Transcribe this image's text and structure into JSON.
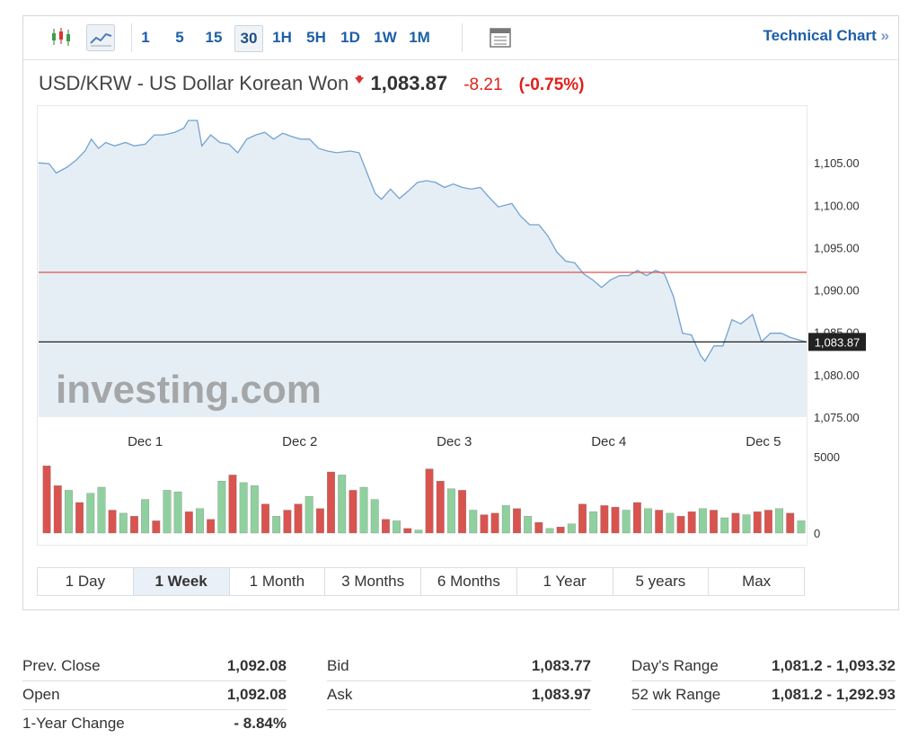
{
  "toolbar": {
    "intervals": [
      "1",
      "5",
      "15",
      "30",
      "1H",
      "5H",
      "1D",
      "1W",
      "1M"
    ],
    "selected": "30",
    "link": "Technical Chart",
    "link_arrow": "»"
  },
  "header": {
    "name": "USD/KRW - US Dollar Korean Won",
    "price": "1,083.87",
    "change": "-8.21",
    "change_pct": "(-0.75%)"
  },
  "watermark": "investing.com",
  "chart_data": [
    {
      "type": "line",
      "color": "#72a3d2",
      "fill": "#e6eef5",
      "x": [
        0.308,
        0.378,
        0.424,
        0.494,
        0.552,
        0.61,
        0.651,
        0.698,
        0.744,
        0.802,
        0.872,
        0.93,
        1.0,
        1.058,
        1.116,
        1.192,
        1.25,
        1.279,
        1.337,
        1.366,
        1.424,
        1.483,
        1.541,
        1.599,
        1.657,
        1.715,
        1.773,
        1.831,
        1.89,
        1.948,
        2.006,
        2.064,
        2.122,
        2.18,
        2.238,
        2.326,
        2.384,
        2.442,
        2.488,
        2.529,
        2.587,
        2.645,
        2.703,
        2.762,
        2.82,
        2.878,
        2.936,
        2.994,
        3.052,
        3.11,
        3.169,
        3.227,
        3.285,
        3.372,
        3.43,
        3.488,
        3.547,
        3.605,
        3.663,
        3.721,
        3.779,
        3.837,
        3.895,
        3.953,
        4.012,
        4.07,
        4.128,
        4.186,
        4.244,
        4.302,
        4.36,
        4.419,
        4.477,
        4.535,
        4.593,
        4.622,
        4.68,
        4.738,
        4.797,
        4.855,
        4.93,
        4.988,
        5.047,
        5.116,
        5.174,
        5.233,
        5.279
      ],
      "values": [
        1105.0,
        1104.9,
        1103.8,
        1104.5,
        1105.3,
        1106.4,
        1107.8,
        1106.7,
        1107.4,
        1107.0,
        1107.4,
        1107.0,
        1107.2,
        1108.3,
        1108.3,
        1108.6,
        1109.1,
        1110.0,
        1110.0,
        1107.0,
        1108.3,
        1107.4,
        1107.2,
        1106.2,
        1107.8,
        1108.3,
        1108.6,
        1107.8,
        1108.5,
        1108.1,
        1107.8,
        1107.8,
        1106.7,
        1106.4,
        1106.2,
        1106.4,
        1106.2,
        1103.5,
        1101.4,
        1100.7,
        1101.9,
        1100.8,
        1101.7,
        1102.7,
        1102.9,
        1102.7,
        1102.1,
        1102.5,
        1102.1,
        1101.9,
        1102.1,
        1100.9,
        1099.8,
        1100.2,
        1098.7,
        1097.7,
        1097.7,
        1096.4,
        1094.5,
        1093.4,
        1093.2,
        1091.9,
        1091.2,
        1090.3,
        1091.2,
        1091.7,
        1091.7,
        1092.3,
        1091.7,
        1092.3,
        1091.9,
        1089.2,
        1084.9,
        1084.7,
        1082.3,
        1081.6,
        1083.4,
        1083.4,
        1086.5,
        1086.0,
        1087.1,
        1083.9,
        1084.9,
        1084.9,
        1084.4,
        1084.1,
        1083.87
      ],
      "xlim": [
        0.31,
        5.28
      ],
      "xticks": [
        {
          "value": 1,
          "label": "Dec 1"
        },
        {
          "value": 2,
          "label": "Dec 2"
        },
        {
          "value": 3,
          "label": "Dec 3"
        },
        {
          "value": 4,
          "label": "Dec 4"
        },
        {
          "value": 5,
          "label": "Dec 5"
        }
      ],
      "ylim": [
        1075,
        1111.7
      ],
      "yticks": [
        {
          "value": 1075,
          "label": "1,075.00"
        },
        {
          "value": 1080,
          "label": "1,080.00"
        },
        {
          "value": 1085,
          "label": "1,085.00"
        },
        {
          "value": 1090,
          "label": "1,090.00"
        },
        {
          "value": 1095,
          "label": "1,095.00"
        },
        {
          "value": 1100,
          "label": "1,100.00"
        },
        {
          "value": 1105,
          "label": "1,105.00"
        }
      ],
      "grid": false,
      "reference_lines": [
        {
          "value": 1092.08,
          "color": "#d9534f"
        },
        {
          "value": 1083.87,
          "label": "1,083.87",
          "color": "#222222"
        }
      ]
    },
    {
      "type": "bar",
      "values": [
        4400,
        3100,
        2800,
        2000,
        2600,
        3000,
        1500,
        1300,
        1100,
        2200,
        800,
        2800,
        2700,
        1400,
        1600,
        900,
        3400,
        3800,
        3300,
        3100,
        1900,
        1100,
        1500,
        1900,
        2400,
        1600,
        4000,
        3800,
        2800,
        3000,
        2200,
        900,
        800,
        300,
        200,
        4200,
        3400,
        2900,
        2800,
        1500,
        1200,
        1300,
        1800,
        1600,
        1100,
        700,
        300,
        400,
        600,
        1900,
        1400,
        1800,
        1700,
        1500,
        2000,
        1600,
        1500,
        1300,
        1100,
        1400,
        1600,
        1500,
        1000,
        1300,
        1200,
        1400,
        1500,
        1600,
        1300,
        800
      ],
      "colors": [
        "#d9534f",
        "#d9534f",
        "#8fd19e",
        "#d9534f",
        "#8fd19e",
        "#8fd19e",
        "#d9534f",
        "#8fd19e",
        "#d9534f",
        "#8fd19e",
        "#d9534f",
        "#8fd19e",
        "#8fd19e",
        "#d9534f",
        "#8fd19e",
        "#d9534f",
        "#8fd19e",
        "#d9534f",
        "#8fd19e",
        "#8fd19e",
        "#d9534f",
        "#8fd19e",
        "#d9534f",
        "#d9534f",
        "#8fd19e",
        "#d9534f",
        "#d9534f",
        "#8fd19e",
        "#d9534f",
        "#8fd19e",
        "#8fd19e",
        "#d9534f",
        "#8fd19e",
        "#d9534f",
        "#8fd19e",
        "#d9534f",
        "#d9534f",
        "#8fd19e",
        "#d9534f",
        "#8fd19e",
        "#d9534f",
        "#d9534f",
        "#8fd19e",
        "#d9534f",
        "#8fd19e",
        "#d9534f",
        "#8fd19e",
        "#d9534f",
        "#8fd19e",
        "#d9534f",
        "#8fd19e",
        "#d9534f",
        "#d9534f",
        "#8fd19e",
        "#d9534f",
        "#8fd19e",
        "#d9534f",
        "#8fd19e",
        "#d9534f",
        "#d9534f",
        "#8fd19e",
        "#d9534f",
        "#8fd19e",
        "#d9534f",
        "#8fd19e",
        "#d9534f",
        "#d9534f",
        "#8fd19e",
        "#d9534f",
        "#8fd19e"
      ],
      "ylim": [
        0,
        5000
      ],
      "yticks": [
        0,
        5000
      ]
    }
  ],
  "ranges": {
    "items": [
      "1 Day",
      "1 Week",
      "1 Month",
      "3 Months",
      "6 Months",
      "1 Year",
      "5 years",
      "Max"
    ],
    "selected": "1 Week"
  },
  "stats": [
    [
      [
        "Prev. Close",
        "1,092.08"
      ],
      [
        "Open",
        "1,092.08"
      ],
      [
        "1-Year Change",
        "- 8.84%"
      ]
    ],
    [
      [
        "Bid",
        "1,083.77"
      ],
      [
        "Ask",
        "1,083.97"
      ]
    ],
    [
      [
        "Day's Range",
        "1,081.2 - 1,093.32"
      ],
      [
        "52 wk Range",
        "1,081.2 - 1,292.93"
      ]
    ]
  ]
}
